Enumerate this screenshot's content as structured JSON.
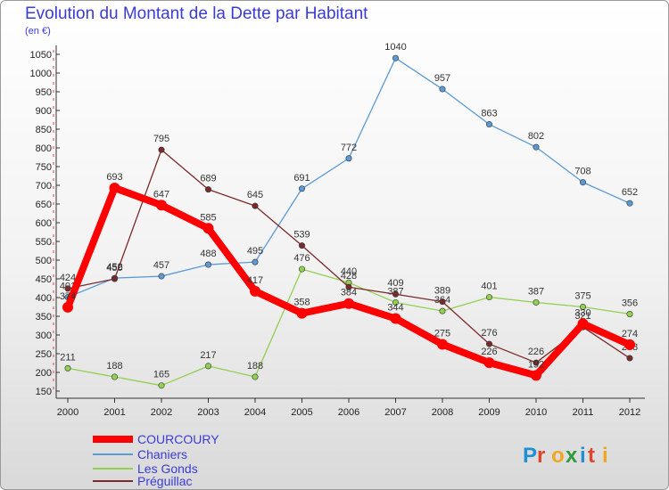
{
  "title": "Evolution du Montant de la Dette par Habitant",
  "unit": "(en €)",
  "brand": "Proxiti",
  "chart_data": {
    "type": "line",
    "title": "Evolution du Montant de la Dette par Habitant",
    "ylabel": "(en €)",
    "x": [
      2000,
      2001,
      2002,
      2003,
      2004,
      2005,
      2006,
      2007,
      2008,
      2009,
      2010,
      2011,
      2012
    ],
    "ylim": [
      150,
      1050
    ],
    "yticks": [
      150,
      200,
      250,
      300,
      350,
      400,
      450,
      500,
      550,
      600,
      650,
      700,
      750,
      800,
      850,
      900,
      950,
      1000,
      1050
    ],
    "grid": false,
    "legend": "bottom-left",
    "series": [
      {
        "name": "COURCOURY",
        "color": "#ff0000",
        "values": [
          374,
          693,
          647,
          585,
          417,
          358,
          384,
          344,
          275,
          226,
          192,
          330,
          274
        ]
      },
      {
        "name": "Chaniers",
        "color": "#5b9bd5",
        "values": [
          401,
          452,
          457,
          488,
          495,
          691,
          772,
          1040,
          957,
          863,
          802,
          708,
          652
        ]
      },
      {
        "name": "Les Gonds",
        "color": "#92d050",
        "values": [
          211,
          188,
          165,
          217,
          188,
          476,
          440,
          387,
          364,
          401,
          387,
          375,
          356
        ]
      },
      {
        "name": "Préguillac",
        "color": "#7b2a2a",
        "values": [
          424,
          450,
          795,
          689,
          645,
          539,
          428,
          409,
          389,
          276,
          226,
          321,
          238
        ]
      }
    ]
  }
}
